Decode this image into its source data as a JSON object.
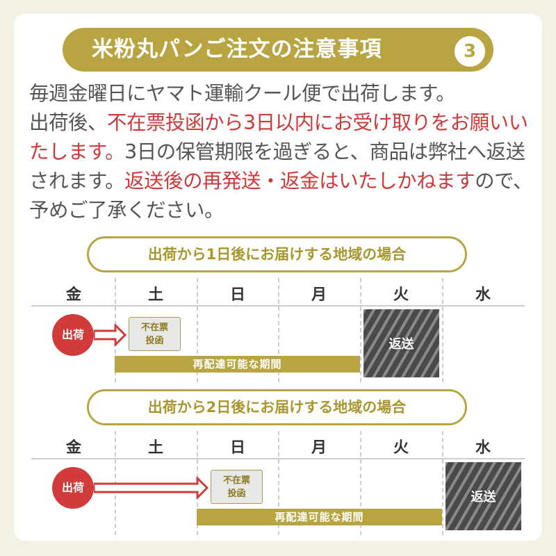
{
  "title": "米粉丸パンご注文の注意事項",
  "number": "3",
  "notice": {
    "p1": "毎週金曜日にヤマト運輸クール便で出荷します。",
    "p2a": "出荷後、",
    "p2b": "不在票投函から3日以内にお受け取りをお願いいたします。",
    "p2c": "3日の保管期限を過ぎると、商品は弊社へ返送されます。",
    "p2d": "返送後の再発送・返金はいたしかねます",
    "p2e": "ので、予めご了承ください。"
  },
  "days": [
    "金",
    "土",
    "日",
    "月",
    "火",
    "水"
  ],
  "sections": [
    {
      "heading": "出荷から1日後にお届けする地域の場合",
      "ship": "出荷",
      "notice_box": "不在票\n投函",
      "period": "再配達可能な期間",
      "return": "返送"
    },
    {
      "heading": "出荷から2日後にお届けする地域の場合",
      "ship": "出荷",
      "notice_box": "不在票\n投函",
      "period": "再配達可能な期間",
      "return": "返送"
    }
  ],
  "colors": {
    "gold": "#b8a542",
    "red": "#d23b3b",
    "background": "#f3f1e4"
  }
}
